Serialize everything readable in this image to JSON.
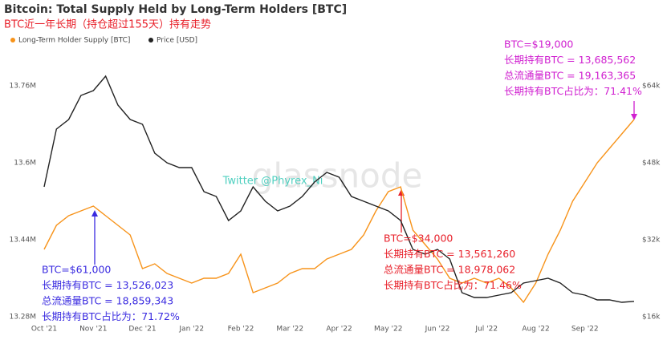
{
  "chart_data": {
    "type": "line",
    "title": "Bitcoin: Total Supply Held by Long-Term Holders [BTC]",
    "subtitle": "BTC近一年长期（持仓超过155天）持有走势",
    "watermarks": [
      "Twitter @Phyrex_Ni",
      "glassnode"
    ],
    "categories": [
      "Oct '21",
      null,
      null,
      null,
      "Nov '21",
      null,
      null,
      null,
      "Dec '21",
      null,
      null,
      null,
      "Jan '22",
      null,
      null,
      null,
      "Feb '22",
      null,
      null,
      null,
      "Mar '22",
      null,
      null,
      null,
      "Apr '22",
      null,
      null,
      null,
      "May '22",
      null,
      null,
      null,
      "Jun '22",
      null,
      null,
      null,
      "Jul '22",
      null,
      null,
      null,
      "Aug '22",
      null,
      null,
      null,
      "Sep '22",
      null,
      null,
      null,
      null
    ],
    "series": [
      {
        "name": "Long-Term Holder Supply [BTC]",
        "color": "#f7931a",
        "values": [
          13.42,
          13.47,
          13.49,
          13.5,
          13.51,
          13.49,
          13.47,
          13.45,
          13.38,
          13.39,
          13.37,
          13.36,
          13.35,
          13.36,
          13.36,
          13.37,
          13.41,
          13.33,
          13.34,
          13.35,
          13.37,
          13.38,
          13.38,
          13.4,
          13.41,
          13.42,
          13.45,
          13.5,
          13.54,
          13.55,
          13.46,
          13.43,
          13.4,
          13.36,
          13.35,
          13.36,
          13.35,
          13.36,
          13.34,
          13.31,
          13.35,
          13.41,
          13.46,
          13.52,
          13.56,
          13.6,
          13.63,
          13.66,
          13.69
        ]
      },
      {
        "name": "Price [USD]",
        "color": "#222222",
        "axis": "y2",
        "values": [
          43000,
          55000,
          57000,
          62000,
          63000,
          66000,
          60000,
          57000,
          56000,
          50000,
          48000,
          47000,
          47000,
          42000,
          41000,
          36000,
          38000,
          43000,
          40000,
          38000,
          39000,
          41000,
          44000,
          46000,
          45000,
          41000,
          40000,
          39000,
          38000,
          36000,
          30000,
          29000,
          30000,
          28000,
          21000,
          20000,
          20000,
          20500,
          21000,
          23000,
          23500,
          24000,
          23000,
          21000,
          20500,
          19500,
          19500,
          19000,
          19200
        ]
      }
    ],
    "ylim": [
      13.27,
      13.87
    ],
    "yticks": [
      {
        "value": 13.28,
        "label": "13.28M"
      },
      {
        "value": 13.44,
        "label": "13.44M"
      },
      {
        "value": 13.6,
        "label": "13.6M"
      },
      {
        "value": 13.76,
        "label": "13.76M"
      }
    ],
    "y2lim": [
      15000,
      75000
    ],
    "y2ticks": [
      {
        "value": 16000,
        "label": "$16k"
      },
      {
        "value": 32000,
        "label": "$32k"
      },
      {
        "value": 48000,
        "label": "$48k"
      },
      {
        "value": 64000,
        "label": "$64k"
      }
    ],
    "legend": "top-left",
    "annotations": [
      {
        "color": "#3a2be0",
        "lines": [
          "BTC=$61,000",
          "长期持有BTC = 13,526,023",
          "总流通量BTC = 18,859,343",
          "长期持有BTC占比为：71.72%"
        ]
      },
      {
        "color": "#e8202a",
        "lines": [
          "BTC=$34,000",
          "长期持有BTC = 13,561,260",
          "总流通量BTC = 18,978,062",
          "长期持有BTC占比为：71.46%"
        ]
      },
      {
        "color": "#d020d0",
        "lines": [
          "BTC=$19,000",
          "长期持有BTC = 13,685,562",
          "总流通量BTC = 19,163,365",
          "长期持有BTC占比为：71.41%"
        ]
      }
    ]
  }
}
